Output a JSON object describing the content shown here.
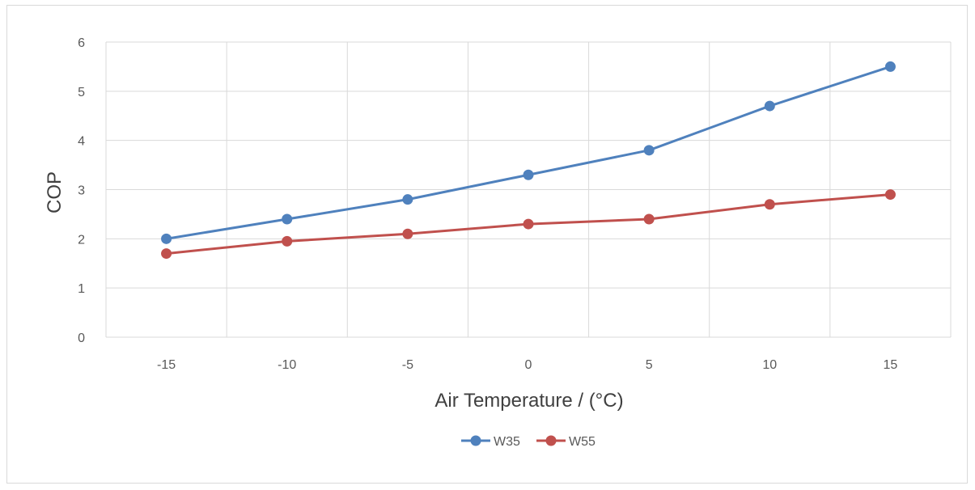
{
  "chart_data": {
    "type": "line",
    "x": [
      -15,
      -10,
      -5,
      0,
      5,
      10,
      15
    ],
    "categories": [
      "-15",
      "-10",
      "-5",
      "0",
      "5",
      "10",
      "15"
    ],
    "series": [
      {
        "name": "W35",
        "color": "#4f81bd",
        "values": [
          2.0,
          2.4,
          2.8,
          3.3,
          3.8,
          4.7,
          5.5
        ]
      },
      {
        "name": "W55",
        "color": "#c0504d",
        "values": [
          1.7,
          1.95,
          2.1,
          2.3,
          2.4,
          2.7,
          2.9
        ]
      }
    ],
    "xlabel": "Air Temperature / (°C)",
    "ylabel": "COP",
    "ylim": [
      0,
      6
    ],
    "yticks": [
      0,
      1,
      2,
      3,
      4,
      5,
      6
    ],
    "grid": true,
    "legend": "bottom",
    "marker": "circle"
  }
}
